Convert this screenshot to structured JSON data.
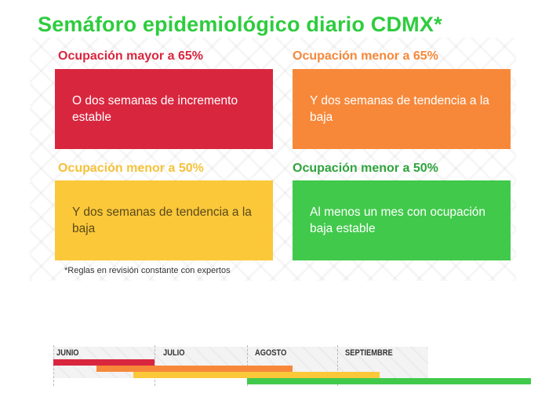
{
  "title": "Semáforo epidemiológico diario CDMX*",
  "cards": [
    {
      "heading": "Ocupación mayor a 65%",
      "text": "O dos semanas de incremento estable",
      "color": "#d9263f",
      "heading_color": "#d9263f"
    },
    {
      "heading": "Ocupación menor a 65%",
      "text": "Y dos semanas de tendencia a la baja",
      "color": "#f7883a",
      "heading_color": "#f7883a"
    },
    {
      "heading": "Ocupación menor a 50%",
      "text": "Y dos semanas de tendencia a la baja",
      "color": "#fbc83a",
      "heading_color": "#f5c23a",
      "text_color": "#5a4a1a"
    },
    {
      "heading": "Ocupación menor a 50%",
      "text": "Al menos un mes con ocupación baja estable",
      "color": "#41c94b",
      "heading_color": "#2fa33c"
    }
  ],
  "note": "*Reglas en revisión constante con expertos",
  "timeline": {
    "months": [
      "JUNIO",
      "JULIO",
      "AGOSTO",
      "SEPTIEMBRE"
    ],
    "bars": [
      {
        "name": "red",
        "color": "#d9263f"
      },
      {
        "name": "orange",
        "color": "#f7883a"
      },
      {
        "name": "yellow",
        "color": "#fbc83a"
      },
      {
        "name": "green",
        "color": "#41c94b"
      }
    ]
  }
}
